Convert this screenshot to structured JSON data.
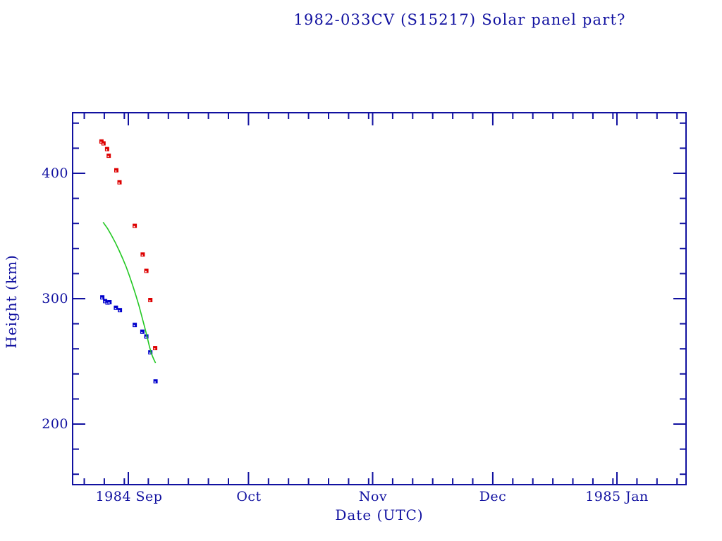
{
  "colors": {
    "background": "#ffffff",
    "axis_and_text": "#1111a0",
    "red_marker": "#dd0000",
    "blue_marker": "#0000cc",
    "green_line": "#22c822"
  },
  "chart_data": {
    "type": "scatter",
    "title": "1982-033CV (S15217) Solar panel part?",
    "xlabel": "Date (UTC)",
    "ylabel": "Height (km)",
    "grid": "off",
    "legend": "none",
    "x_axis": {
      "note": "time axis; t = days relative to 1984-09-01 00:00 UTC",
      "range_t_days": [
        -13.9,
        139.3
      ],
      "major_ticks": [
        {
          "label": "1984 Sep",
          "t": 0
        },
        {
          "label": "Oct",
          "t": 30
        },
        {
          "label": "Nov",
          "t": 61
        },
        {
          "label": "Dec",
          "t": 91
        },
        {
          "label": "1985 Jan",
          "t": 122
        }
      ],
      "minor_ticks_t": [
        -11,
        -6,
        -1,
        5,
        10,
        15,
        20,
        25,
        35,
        40,
        45,
        50,
        55,
        60,
        66,
        71,
        76,
        81,
        86,
        96,
        101,
        106,
        111,
        116,
        121,
        127,
        132,
        137
      ]
    },
    "y_axis": {
      "range_km": [
        150,
        450
      ],
      "major_ticks": [
        {
          "label": "400",
          "value": 400
        },
        {
          "label": "300",
          "value": 300
        },
        {
          "label": "200",
          "value": 200
        }
      ],
      "minor_ticks_km": [
        160,
        180,
        220,
        240,
        260,
        280,
        320,
        340,
        360,
        380,
        420,
        440
      ]
    },
    "series": [
      {
        "name": "red_squares",
        "type": "scatter",
        "marker": "square",
        "color": "#dd0000",
        "points_t_h": [
          [
            -6.7,
            425.4
          ],
          [
            -6.2,
            423.9
          ],
          [
            -5.3,
            419.3
          ],
          [
            -4.9,
            414.0
          ],
          [
            -3.0,
            402.4
          ],
          [
            -2.2,
            392.8
          ],
          [
            1.6,
            358.1
          ],
          [
            3.6,
            335.2
          ],
          [
            4.5,
            322.2
          ],
          [
            5.5,
            298.9
          ],
          [
            6.7,
            260.6
          ]
        ]
      },
      {
        "name": "blue_squares",
        "type": "scatter",
        "marker": "square",
        "color": "#0000cc",
        "points_t_h": [
          [
            -6.5,
            301.0
          ],
          [
            -5.8,
            298.1
          ],
          [
            -5.2,
            296.9
          ],
          [
            -4.7,
            297.2
          ],
          [
            -3.1,
            292.8
          ],
          [
            -2.1,
            290.9
          ],
          [
            1.6,
            279.1
          ],
          [
            3.5,
            273.7
          ],
          [
            4.5,
            269.9
          ],
          [
            5.5,
            257.2
          ],
          [
            6.8,
            234.1
          ]
        ]
      },
      {
        "name": "green_line",
        "type": "line",
        "color": "#22c822",
        "points_t_h": [
          [
            -6.3,
            361.0
          ],
          [
            -5.2,
            356.0
          ],
          [
            -4.2,
            350.5
          ],
          [
            -3.2,
            344.5
          ],
          [
            -2.3,
            338.5
          ],
          [
            -1.4,
            332.0
          ],
          [
            -0.5,
            325.0
          ],
          [
            0.3,
            318.0
          ],
          [
            1.1,
            310.5
          ],
          [
            1.9,
            302.5
          ],
          [
            2.7,
            294.0
          ],
          [
            3.4,
            285.5
          ],
          [
            4.1,
            277.0
          ],
          [
            4.7,
            269.5
          ],
          [
            5.3,
            261.5
          ],
          [
            5.8,
            256.0
          ],
          [
            6.3,
            252.0
          ],
          [
            6.6,
            250.0
          ],
          [
            6.8,
            248.8
          ]
        ]
      }
    ]
  }
}
